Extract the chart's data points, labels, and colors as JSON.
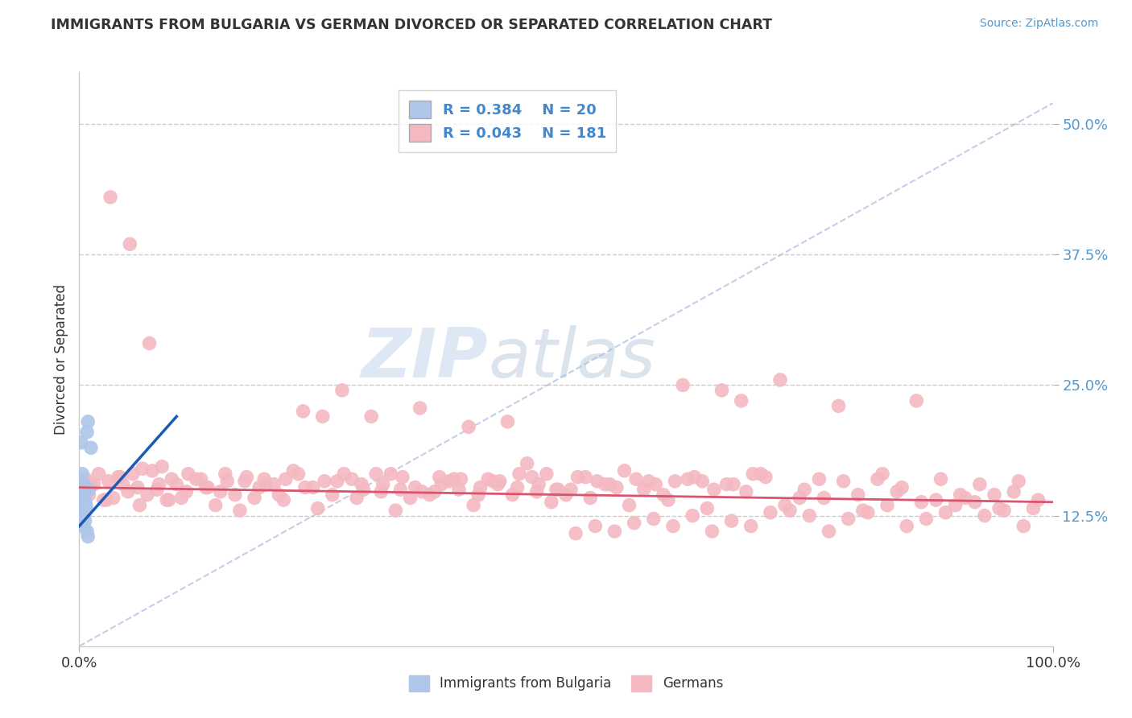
{
  "title": "IMMIGRANTS FROM BULGARIA VS GERMAN DIVORCED OR SEPARATED CORRELATION CHART",
  "source_text": "Source: ZipAtlas.com",
  "ylabel": "Divorced or Separated",
  "xlabel": "",
  "xlim": [
    0.0,
    100.0
  ],
  "ylim": [
    0.0,
    55.0
  ],
  "yticks": [
    12.5,
    25.0,
    37.5,
    50.0
  ],
  "ytick_labels": [
    "12.5%",
    "25.0%",
    "37.5%",
    "50.0%"
  ],
  "xticks": [
    0.0,
    100.0
  ],
  "xtick_labels": [
    "0.0%",
    "100.0%"
  ],
  "legend_label_blue": "Immigrants from Bulgaria",
  "legend_label_pink": "Germans",
  "blue_color": "#aec6e8",
  "pink_color": "#f4b8c1",
  "blue_line_color": "#1a5cb5",
  "pink_line_color": "#d9546e",
  "watermark_zip": "ZIP",
  "watermark_atlas": "atlas",
  "background_color": "#ffffff",
  "blue_scatter_x": [
    0.3,
    0.5,
    0.8,
    0.4,
    0.6,
    0.9,
    0.2,
    0.7,
    0.5,
    0.4,
    0.6,
    0.8,
    1.0,
    0.3,
    0.5,
    0.7,
    1.2,
    0.4,
    0.6,
    0.9
  ],
  "blue_scatter_y": [
    14.5,
    15.5,
    20.5,
    13.0,
    14.0,
    21.5,
    19.5,
    13.5,
    12.5,
    11.5,
    12.0,
    11.0,
    15.0,
    16.5,
    14.8,
    13.2,
    19.0,
    12.8,
    13.8,
    10.5
  ],
  "pink_scatter_x": [
    0.4,
    0.7,
    1.0,
    1.5,
    2.0,
    2.5,
    3.0,
    3.5,
    4.0,
    4.5,
    5.0,
    5.5,
    6.0,
    6.5,
    7.0,
    7.5,
    8.0,
    8.5,
    9.0,
    9.5,
    10.0,
    11.0,
    12.0,
    13.0,
    14.0,
    15.0,
    16.0,
    17.0,
    18.0,
    19.0,
    20.0,
    21.0,
    22.0,
    23.0,
    24.0,
    25.0,
    26.0,
    27.0,
    28.0,
    29.0,
    30.0,
    31.0,
    32.0,
    33.0,
    34.0,
    35.0,
    36.0,
    37.0,
    38.0,
    39.0,
    40.0,
    41.0,
    42.0,
    43.0,
    44.0,
    45.0,
    46.0,
    47.0,
    48.0,
    49.0,
    50.0,
    51.0,
    52.0,
    53.0,
    54.0,
    55.0,
    56.0,
    57.0,
    58.0,
    59.0,
    60.0,
    61.0,
    62.0,
    63.0,
    64.0,
    65.0,
    66.0,
    67.0,
    68.0,
    69.0,
    70.0,
    71.0,
    72.0,
    73.0,
    74.0,
    75.0,
    76.0,
    77.0,
    78.0,
    79.0,
    80.0,
    81.0,
    82.0,
    83.0,
    84.0,
    85.0,
    86.0,
    87.0,
    88.0,
    89.0,
    90.0,
    91.0,
    92.0,
    93.0,
    94.0,
    95.0,
    96.0,
    97.0,
    98.0,
    1.2,
    2.8,
    4.2,
    6.2,
    8.2,
    10.5,
    12.5,
    14.5,
    16.5,
    18.5,
    20.5,
    22.5,
    24.5,
    26.5,
    28.5,
    30.5,
    32.5,
    34.5,
    36.5,
    38.5,
    40.5,
    42.5,
    44.5,
    46.5,
    48.5,
    50.5,
    52.5,
    54.5,
    56.5,
    58.5,
    60.5,
    62.5,
    64.5,
    66.5,
    68.5,
    70.5,
    72.5,
    74.5,
    76.5,
    78.5,
    80.5,
    82.5,
    84.5,
    86.5,
    88.5,
    90.5,
    92.5,
    94.5,
    96.5,
    98.5,
    3.2,
    5.2,
    7.2,
    9.2,
    11.2,
    13.2,
    15.2,
    17.2,
    19.2,
    21.2,
    23.2,
    25.2,
    27.2,
    29.2,
    31.2,
    33.2,
    35.2,
    37.2,
    39.2,
    41.2,
    43.2,
    45.2,
    47.2,
    49.2,
    51.2,
    53.2,
    55.2,
    57.2,
    59.2,
    61.2,
    63.2,
    65.2,
    67.2,
    69.2
  ],
  "pink_scatter_y": [
    15.0,
    16.0,
    14.5,
    15.5,
    16.5,
    14.0,
    15.8,
    14.2,
    16.2,
    15.5,
    14.8,
    16.5,
    15.2,
    17.0,
    14.5,
    16.8,
    15.0,
    17.2,
    14.0,
    16.0,
    15.5,
    14.8,
    16.0,
    15.2,
    13.5,
    16.5,
    14.5,
    15.8,
    14.2,
    16.0,
    15.5,
    14.0,
    16.8,
    22.5,
    15.2,
    22.0,
    14.5,
    24.5,
    16.0,
    15.5,
    22.0,
    14.8,
    16.5,
    15.0,
    14.2,
    22.8,
    14.5,
    16.2,
    15.8,
    15.0,
    21.0,
    14.5,
    16.0,
    15.5,
    21.5,
    15.2,
    17.5,
    14.8,
    16.5,
    15.0,
    14.5,
    10.8,
    16.2,
    11.5,
    15.5,
    11.0,
    16.8,
    11.8,
    15.0,
    12.2,
    14.5,
    11.5,
    25.0,
    12.5,
    15.8,
    11.0,
    24.5,
    12.0,
    23.5,
    11.5,
    16.5,
    12.8,
    25.5,
    13.0,
    14.2,
    12.5,
    16.0,
    11.0,
    23.0,
    12.2,
    14.5,
    12.8,
    16.0,
    13.5,
    14.8,
    11.5,
    23.5,
    12.2,
    14.0,
    12.8,
    13.5,
    14.2,
    13.8,
    12.5,
    14.5,
    13.0,
    14.8,
    11.5,
    13.2,
    15.5,
    14.0,
    16.2,
    13.5,
    15.5,
    14.2,
    16.0,
    14.8,
    13.0,
    15.2,
    14.5,
    16.5,
    13.2,
    15.8,
    14.2,
    16.5,
    13.0,
    15.2,
    14.8,
    16.0,
    13.5,
    15.8,
    14.5,
    16.2,
    13.8,
    15.0,
    14.2,
    15.5,
    13.5,
    15.8,
    14.0,
    16.0,
    13.2,
    15.5,
    14.8,
    16.2,
    13.5,
    15.0,
    14.2,
    15.8,
    13.0,
    16.5,
    15.2,
    13.8,
    16.0,
    14.5,
    15.5,
    13.2,
    15.8,
    14.0,
    43.0,
    38.5,
    29.0,
    14.0,
    16.5,
    15.2,
    15.8,
    16.2,
    15.5,
    16.0,
    15.2,
    15.8,
    16.5,
    15.0,
    15.5,
    16.2,
    14.8,
    15.5,
    16.0,
    15.2,
    15.8,
    16.5,
    15.5,
    15.0,
    16.2,
    15.8,
    15.2,
    16.0,
    15.5,
    15.8,
    16.2,
    15.0,
    15.5,
    16.5
  ]
}
